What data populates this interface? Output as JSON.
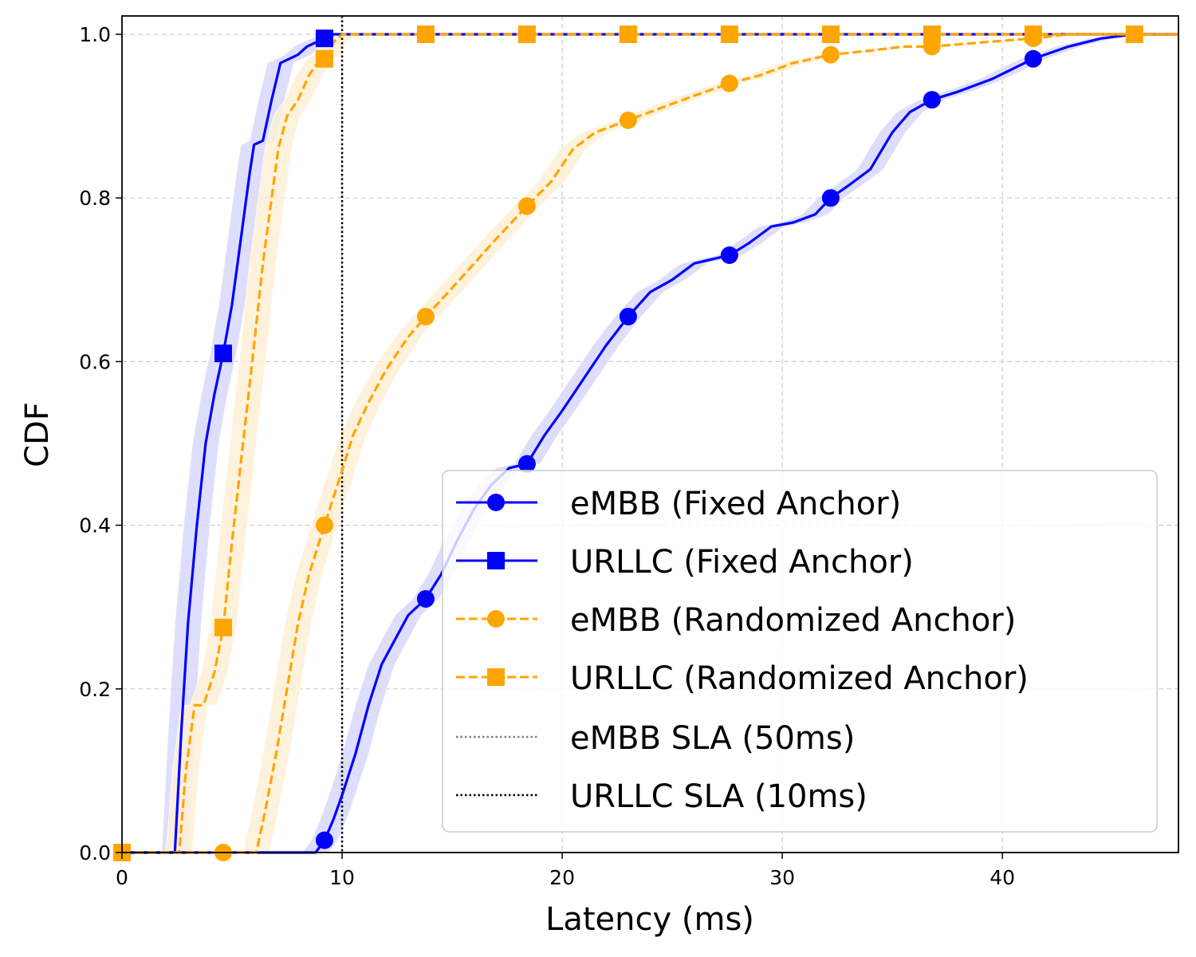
{
  "chart_data": {
    "type": "line",
    "title": "",
    "xlabel": "Latency (ms)",
    "ylabel": "CDF",
    "xlim": [
      0,
      48
    ],
    "ylim": [
      0,
      1.0
    ],
    "xticks": [
      "0",
      "10",
      "20",
      "30",
      "40"
    ],
    "yticks": [
      "0.0",
      "0.2",
      "0.4",
      "0.6",
      "0.8",
      "1.0"
    ],
    "grid": true,
    "legend_position": "lower right",
    "series": [
      {
        "name": "eMBB (Fixed Anchor)",
        "color": "#0000ff",
        "band_color": "#d8d8fb",
        "linestyle": "solid",
        "marker": "circle",
        "x": [
          0,
          8.8,
          9.2,
          9.6,
          10.0,
          10.6,
          11.2,
          11.8,
          12.4,
          13.0,
          13.8,
          14.5,
          15.2,
          16.0,
          16.8,
          17.6,
          18.4,
          19.2,
          20.0,
          21.0,
          22.0,
          23.0,
          24.0,
          25.0,
          26.0,
          27.6,
          28.5,
          29.5,
          30.5,
          31.5,
          32.2,
          33.0,
          34.0,
          35.0,
          35.8,
          36.8,
          38.0,
          39.5,
          41.4,
          43.0,
          44.5,
          46.0,
          48.0
        ],
        "y": [
          0.0,
          0.0,
          0.015,
          0.04,
          0.07,
          0.12,
          0.18,
          0.23,
          0.26,
          0.29,
          0.31,
          0.34,
          0.38,
          0.42,
          0.45,
          0.47,
          0.475,
          0.51,
          0.54,
          0.58,
          0.62,
          0.655,
          0.685,
          0.7,
          0.72,
          0.73,
          0.745,
          0.765,
          0.77,
          0.78,
          0.8,
          0.815,
          0.835,
          0.88,
          0.905,
          0.92,
          0.93,
          0.945,
          0.97,
          0.985,
          0.995,
          1.0,
          1.0
        ],
        "marker_x": [
          9.2,
          13.8,
          18.4,
          23.0,
          27.6,
          32.2,
          36.8,
          41.4
        ],
        "marker_y": [
          0.015,
          0.31,
          0.475,
          0.655,
          0.73,
          0.8,
          0.92,
          0.97
        ]
      },
      {
        "name": "URLLC (Fixed Anchor)",
        "color": "#0000ff",
        "band_color": "#d8d8fb",
        "linestyle": "solid",
        "marker": "square",
        "x": [
          0,
          2.4,
          2.7,
          3.0,
          3.4,
          3.8,
          4.2,
          4.6,
          5.0,
          5.4,
          5.8,
          6.0,
          6.4,
          6.8,
          7.2,
          7.6,
          8.0,
          8.4,
          8.8,
          9.2,
          9.6,
          10.0,
          48.0
        ],
        "y": [
          0.0,
          0.0,
          0.15,
          0.28,
          0.4,
          0.5,
          0.56,
          0.61,
          0.67,
          0.75,
          0.83,
          0.865,
          0.87,
          0.92,
          0.965,
          0.97,
          0.975,
          0.985,
          0.99,
          0.995,
          1.0,
          1.0,
          1.0
        ],
        "marker_x": [
          4.6,
          9.2
        ],
        "marker_y": [
          0.61,
          0.995
        ]
      },
      {
        "name": "eMBB (Randomized Anchor)",
        "color": "#ffa500",
        "band_color": "#fff0d6",
        "linestyle": "dashed",
        "marker": "circle",
        "x": [
          0,
          6.1,
          6.5,
          7.0,
          7.5,
          8.0,
          8.5,
          9.2,
          9.8,
          10.5,
          11.2,
          12.0,
          13.0,
          13.8,
          15.0,
          16.0,
          17.0,
          18.4,
          19.5,
          20.5,
          21.5,
          23.0,
          24.5,
          26.0,
          27.6,
          29.0,
          30.5,
          32.2,
          34.0,
          35.5,
          36.8,
          39.0,
          41.4,
          43.0,
          45.0,
          48.0
        ],
        "y": [
          0.0,
          0.0,
          0.05,
          0.12,
          0.2,
          0.28,
          0.34,
          0.4,
          0.45,
          0.51,
          0.55,
          0.59,
          0.63,
          0.655,
          0.69,
          0.72,
          0.75,
          0.79,
          0.82,
          0.86,
          0.88,
          0.895,
          0.91,
          0.925,
          0.94,
          0.95,
          0.965,
          0.975,
          0.98,
          0.985,
          0.985,
          0.99,
          0.995,
          1.0,
          1.0,
          1.0
        ],
        "marker_x": [
          4.6,
          9.2,
          13.8,
          18.4,
          23.0,
          27.6,
          32.2,
          36.8,
          41.4
        ],
        "marker_y": [
          0.0,
          0.4,
          0.655,
          0.79,
          0.895,
          0.94,
          0.975,
          0.985,
          0.995
        ]
      },
      {
        "name": "URLLC (Randomized Anchor)",
        "color": "#ffa500",
        "band_color": "#fff0d6",
        "linestyle": "dashed",
        "marker": "square",
        "x": [
          0,
          2.6,
          2.9,
          3.3,
          3.7,
          4.2,
          4.6,
          5.0,
          5.5,
          6.0,
          6.4,
          6.8,
          7.1,
          7.5,
          8.0,
          8.5,
          9.0,
          9.3,
          9.6,
          10.0,
          48.0
        ],
        "y": [
          0.0,
          0.0,
          0.1,
          0.18,
          0.18,
          0.22,
          0.275,
          0.38,
          0.5,
          0.62,
          0.72,
          0.8,
          0.86,
          0.9,
          0.92,
          0.95,
          0.97,
          0.975,
          0.99,
          1.0,
          1.0
        ],
        "marker_x": [
          0,
          4.6,
          9.2,
          13.8,
          18.4,
          23.0,
          27.6,
          32.2,
          36.8,
          41.4,
          46.0
        ],
        "marker_y": [
          0.0,
          0.275,
          0.97,
          1.0,
          1.0,
          1.0,
          1.0,
          1.0,
          1.0,
          1.0,
          1.0
        ]
      }
    ],
    "reference_lines": [
      {
        "name": "eMBB SLA (50ms)",
        "x": 50,
        "color": "#808080",
        "linestyle": "dotted"
      },
      {
        "name": "URLLC SLA (10ms)",
        "x": 10,
        "color": "#000000",
        "linestyle": "dotted"
      }
    ]
  },
  "legend": {
    "items": [
      "eMBB (Fixed Anchor)",
      "URLLC (Fixed Anchor)",
      "eMBB (Randomized Anchor)",
      "URLLC (Randomized Anchor)",
      "eMBB SLA (50ms)",
      "URLLC SLA (10ms)"
    ]
  },
  "axes": {
    "xlabel": "Latency (ms)",
    "ylabel": "CDF"
  }
}
